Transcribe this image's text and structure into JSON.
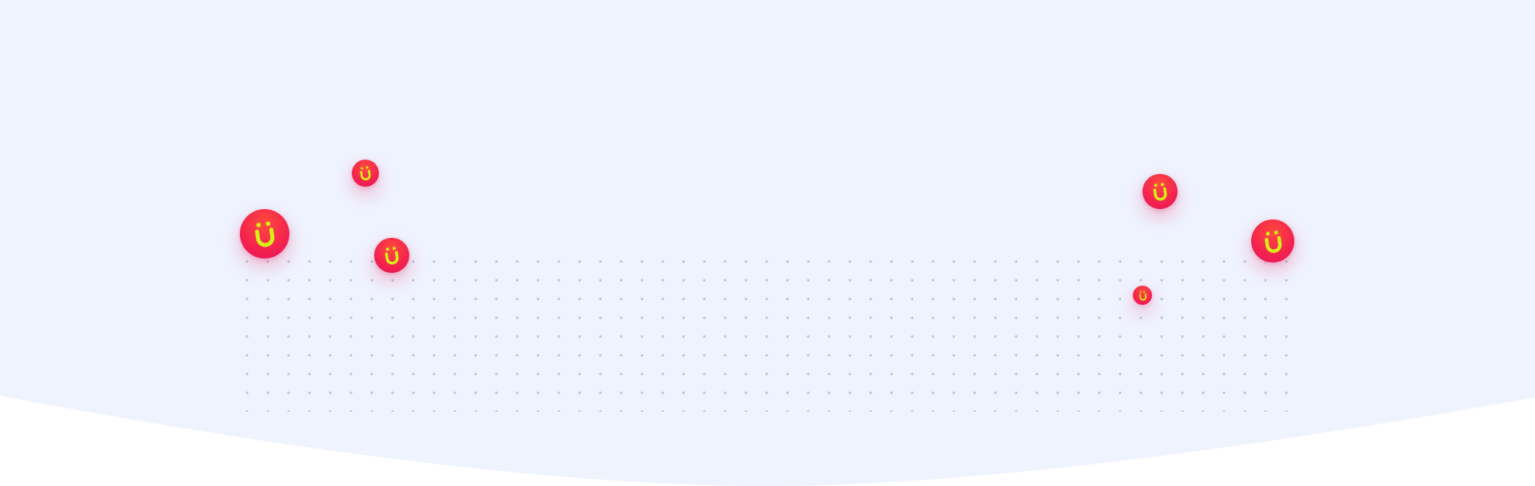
{
  "colors": {
    "background": "#eff3fe",
    "page": "#ffffff",
    "bubble_red": "#f4254d",
    "logo_yellow": "#d7f018",
    "grid_dot": "#bcc3d4"
  },
  "bubbles": [
    {
      "icon": "u-umlaut-logo-icon"
    },
    {
      "icon": "u-umlaut-logo-icon"
    },
    {
      "icon": "u-umlaut-logo-icon"
    },
    {
      "icon": "u-umlaut-logo-icon"
    },
    {
      "icon": "u-umlaut-logo-icon"
    },
    {
      "icon": "u-umlaut-logo-icon"
    }
  ]
}
